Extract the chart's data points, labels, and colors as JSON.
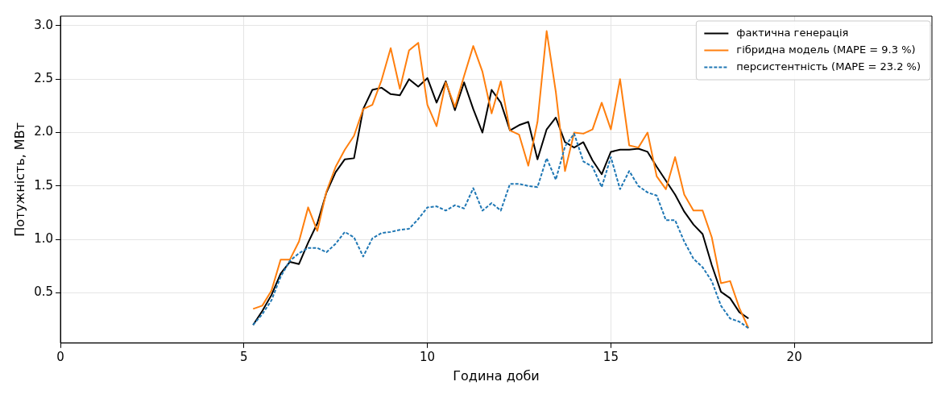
{
  "chart_data": {
    "type": "line",
    "xlabel": "Година доби",
    "ylabel": "Потужність, МВт",
    "x": [
      5.25,
      5.5,
      5.75,
      6.0,
      6.25,
      6.5,
      6.75,
      7.0,
      7.25,
      7.5,
      7.75,
      8.0,
      8.25,
      8.5,
      8.75,
      9.0,
      9.25,
      9.5,
      9.75,
      10.0,
      10.25,
      10.5,
      10.75,
      11.0,
      11.25,
      11.5,
      11.75,
      12.0,
      12.25,
      12.5,
      12.75,
      13.0,
      13.25,
      13.5,
      13.75,
      14.0,
      14.25,
      14.5,
      14.75,
      15.0,
      15.25,
      15.5,
      15.75,
      16.0,
      16.25,
      16.5,
      16.75,
      17.0,
      17.25,
      17.5,
      17.75,
      18.0,
      18.25,
      18.5,
      18.75
    ],
    "series": [
      {
        "name": "фактична генерація",
        "color": "#000000",
        "line_style": "solid",
        "values": [
          0.2,
          0.33,
          0.48,
          0.68,
          0.79,
          0.77,
          0.97,
          1.15,
          1.44,
          1.63,
          1.75,
          1.76,
          2.22,
          2.4,
          2.42,
          2.36,
          2.35,
          2.5,
          2.43,
          2.51,
          2.28,
          2.48,
          2.21,
          2.47,
          2.22,
          2.0,
          2.4,
          2.28,
          2.02,
          2.07,
          2.1,
          1.75,
          2.03,
          2.14,
          1.91,
          1.86,
          1.91,
          1.74,
          1.61,
          1.82,
          1.84,
          1.84,
          1.85,
          1.82,
          1.68,
          1.55,
          1.42,
          1.26,
          1.14,
          1.05,
          0.76,
          0.51,
          0.45,
          0.32,
          0.26
        ]
      },
      {
        "name": "гібридна модель (MAPE = 9.3 %)",
        "color": "#ff7f0e",
        "line_style": "solid",
        "values": [
          0.35,
          0.38,
          0.52,
          0.81,
          0.81,
          0.98,
          1.3,
          1.08,
          1.45,
          1.68,
          1.84,
          1.97,
          2.22,
          2.26,
          2.49,
          2.79,
          2.41,
          2.77,
          2.84,
          2.26,
          2.06,
          2.47,
          2.24,
          2.53,
          2.81,
          2.57,
          2.18,
          2.48,
          2.02,
          1.98,
          1.69,
          2.1,
          2.95,
          2.38,
          1.64,
          2.0,
          1.99,
          2.03,
          2.28,
          2.03,
          2.5,
          1.88,
          1.86,
          2.0,
          1.59,
          1.47,
          1.77,
          1.42,
          1.27,
          1.27,
          1.02,
          0.59,
          0.61,
          0.36,
          0.17
        ]
      },
      {
        "name": "персистентність (MAPE = 23.2 %)",
        "color": "#1f77b4",
        "line_style": "dashed",
        "values": [
          0.2,
          0.3,
          0.43,
          0.65,
          0.8,
          0.87,
          0.92,
          0.92,
          0.88,
          0.96,
          1.07,
          1.02,
          0.84,
          1.01,
          1.06,
          1.07,
          1.09,
          1.1,
          1.19,
          1.3,
          1.31,
          1.27,
          1.32,
          1.29,
          1.48,
          1.27,
          1.34,
          1.27,
          1.52,
          1.52,
          1.5,
          1.49,
          1.76,
          1.56,
          1.87,
          1.99,
          1.73,
          1.68,
          1.49,
          1.77,
          1.47,
          1.64,
          1.5,
          1.44,
          1.41,
          1.18,
          1.18,
          0.98,
          0.82,
          0.74,
          0.61,
          0.38,
          0.26,
          0.23,
          0.17
        ]
      }
    ],
    "xlim": [
      0,
      23.75
    ],
    "xticks": [
      0,
      5,
      10,
      15,
      20
    ],
    "ylim": [
      0.03,
      3.09
    ],
    "yticks": [
      {
        "value": 0.5,
        "label": "0.5"
      },
      {
        "value": 1.0,
        "label": "1.0"
      },
      {
        "value": 1.5,
        "label": "1.5"
      },
      {
        "value": 2.0,
        "label": "2.0"
      },
      {
        "value": 2.5,
        "label": "2.5"
      },
      {
        "value": 3.0,
        "label": "3.0"
      }
    ],
    "grid": true,
    "legend": "top right",
    "marker": "none"
  }
}
